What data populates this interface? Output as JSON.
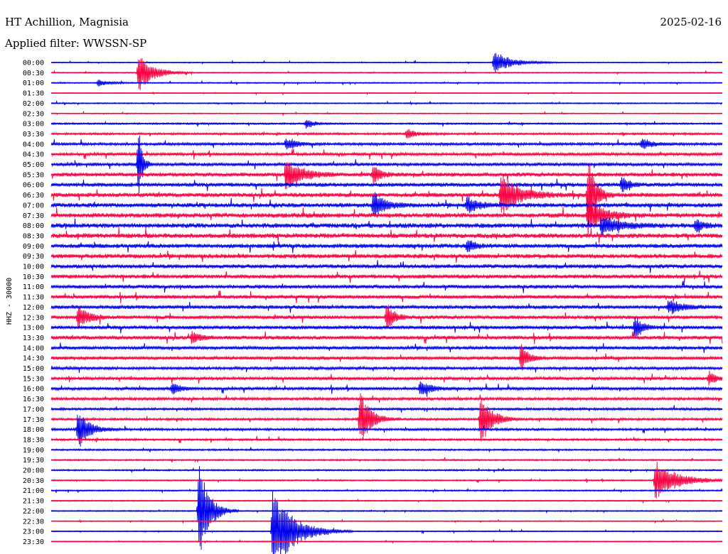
{
  "header": {
    "station": "HT Achillion, Magnisia",
    "date": "2025-02-16",
    "filter": "Applied filter: WWSSN-SP"
  },
  "chart_data": {
    "type": "line",
    "ylabel": "HHZ - 30000",
    "colors": [
      "#0000ee",
      "#ff0040"
    ],
    "rows": [
      "00:00",
      "00:30",
      "01:00",
      "01:30",
      "02:00",
      "02:30",
      "03:00",
      "03:30",
      "04:00",
      "04:30",
      "05:00",
      "05:30",
      "06:00",
      "06:30",
      "07:00",
      "07:30",
      "08:00",
      "08:30",
      "09:00",
      "09:30",
      "10:00",
      "10:30",
      "11:00",
      "11:30",
      "12:00",
      "12:30",
      "13:00",
      "13:30",
      "14:00",
      "14:30",
      "15:00",
      "15:30",
      "16:00",
      "16:30",
      "17:00",
      "17:30",
      "18:00",
      "18:30",
      "19:00",
      "19:30",
      "20:00",
      "20:30",
      "21:00",
      "21:30",
      "22:00",
      "22:30",
      "23:00",
      "23:30"
    ],
    "noise": [
      0.6,
      0.6,
      0.7,
      0.5,
      0.7,
      0.6,
      1.0,
      1.2,
      1.6,
      1.8,
      2.0,
      2.4,
      2.4,
      2.6,
      2.6,
      2.8,
      2.8,
      2.8,
      2.6,
      2.6,
      2.4,
      2.4,
      2.2,
      2.2,
      2.2,
      2.2,
      2.2,
      2.2,
      2.0,
      2.0,
      1.8,
      1.8,
      1.8,
      1.6,
      1.4,
      1.4,
      1.4,
      1.2,
      1.0,
      0.9,
      0.9,
      0.8,
      0.8,
      0.7,
      0.7,
      0.6,
      0.6,
      0.6
    ],
    "events": [
      {
        "row": 0,
        "pos": 0.66,
        "amp": 16,
        "dur": 0.05
      },
      {
        "row": 1,
        "pos": 0.13,
        "amp": 28,
        "dur": 0.04
      },
      {
        "row": 2,
        "pos": 0.07,
        "amp": 5,
        "dur": 0.03
      },
      {
        "row": 6,
        "pos": 0.38,
        "amp": 8,
        "dur": 0.02
      },
      {
        "row": 7,
        "pos": 0.53,
        "amp": 7,
        "dur": 0.03
      },
      {
        "row": 8,
        "pos": 0.35,
        "amp": 9,
        "dur": 0.03
      },
      {
        "row": 8,
        "pos": 0.88,
        "amp": 8,
        "dur": 0.03
      },
      {
        "row": 10,
        "pos": 0.13,
        "amp": 60,
        "dur": 0.01
      },
      {
        "row": 11,
        "pos": 0.35,
        "amp": 26,
        "dur": 0.04
      },
      {
        "row": 11,
        "pos": 0.48,
        "amp": 14,
        "dur": 0.02
      },
      {
        "row": 12,
        "pos": 0.85,
        "amp": 12,
        "dur": 0.02
      },
      {
        "row": 13,
        "pos": 0.67,
        "amp": 30,
        "dur": 0.05
      },
      {
        "row": 13,
        "pos": 0.8,
        "amp": 55,
        "dur": 0.02
      },
      {
        "row": 14,
        "pos": 0.48,
        "amp": 20,
        "dur": 0.03
      },
      {
        "row": 14,
        "pos": 0.62,
        "amp": 12,
        "dur": 0.03
      },
      {
        "row": 15,
        "pos": 0.8,
        "amp": 25,
        "dur": 0.04
      },
      {
        "row": 16,
        "pos": 0.82,
        "amp": 14,
        "dur": 0.05
      },
      {
        "row": 16,
        "pos": 0.96,
        "amp": 10,
        "dur": 0.02
      },
      {
        "row": 18,
        "pos": 0.62,
        "amp": 10,
        "dur": 0.02
      },
      {
        "row": 24,
        "pos": 0.92,
        "amp": 10,
        "dur": 0.04
      },
      {
        "row": 25,
        "pos": 0.04,
        "amp": 16,
        "dur": 0.03
      },
      {
        "row": 25,
        "pos": 0.5,
        "amp": 22,
        "dur": 0.02
      },
      {
        "row": 26,
        "pos": 0.87,
        "amp": 18,
        "dur": 0.02
      },
      {
        "row": 27,
        "pos": 0.21,
        "amp": 10,
        "dur": 0.02
      },
      {
        "row": 29,
        "pos": 0.7,
        "amp": 20,
        "dur": 0.02
      },
      {
        "row": 31,
        "pos": 0.98,
        "amp": 10,
        "dur": 0.02
      },
      {
        "row": 32,
        "pos": 0.18,
        "amp": 10,
        "dur": 0.02
      },
      {
        "row": 32,
        "pos": 0.55,
        "amp": 12,
        "dur": 0.03
      },
      {
        "row": 35,
        "pos": 0.46,
        "amp": 40,
        "dur": 0.03
      },
      {
        "row": 35,
        "pos": 0.64,
        "amp": 40,
        "dur": 0.03
      },
      {
        "row": 36,
        "pos": 0.04,
        "amp": 30,
        "dur": 0.03
      },
      {
        "row": 41,
        "pos": 0.9,
        "amp": 30,
        "dur": 0.06
      },
      {
        "row": 44,
        "pos": 0.22,
        "amp": 70,
        "dur": 0.03
      },
      {
        "row": 46,
        "pos": 0.33,
        "amp": 60,
        "dur": 0.06
      }
    ]
  }
}
